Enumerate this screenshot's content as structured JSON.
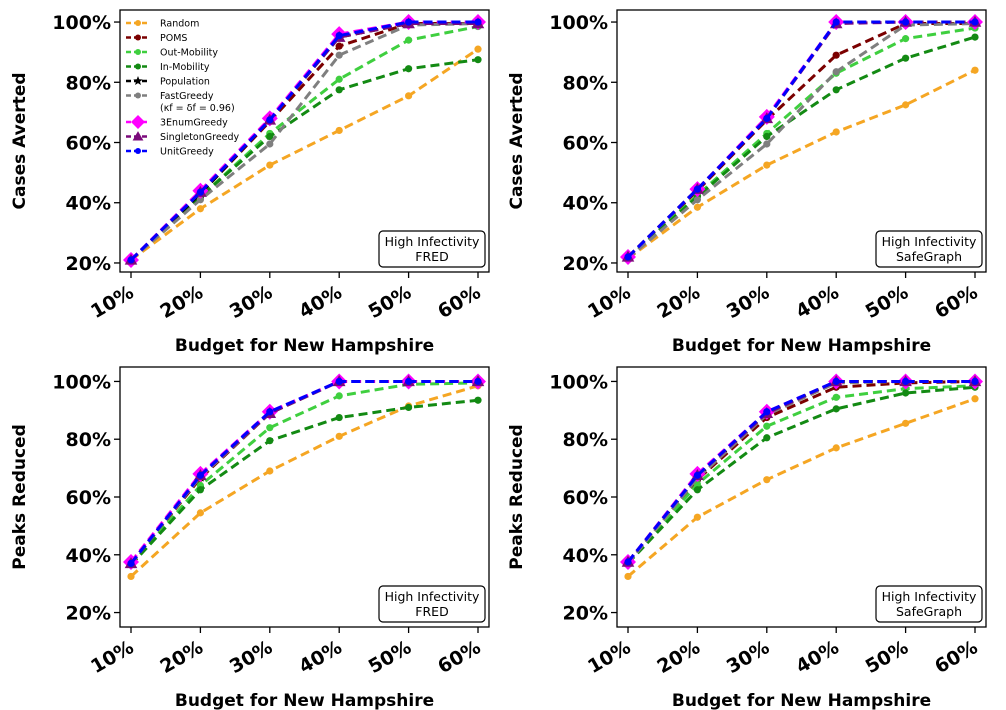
{
  "colors": {
    "Random": "#f5a623",
    "POMS": "#7b0000",
    "Out-Mobility": "#3fcf3f",
    "In-Mobility": "#138a13",
    "Population": "#000000",
    "FastGreedy": "#7f7f7f",
    "3EnumGreedy": "#ff00ff",
    "SingletonGreedy": "#7b0a7b",
    "UnitGreedy": "#0000ff"
  },
  "legend": {
    "items": [
      {
        "name": "Random",
        "label": "Random",
        "marker": "dot"
      },
      {
        "name": "POMS",
        "label": "POMS",
        "marker": "dot"
      },
      {
        "name": "Out-Mobility",
        "label": "Out-Mobility",
        "marker": "dot"
      },
      {
        "name": "In-Mobility",
        "label": "In-Mobility",
        "marker": "dot"
      },
      {
        "name": "Population",
        "label": "Population",
        "marker": "star"
      },
      {
        "name": "FastGreedy",
        "label": "FastGreedy",
        "label2": "(κf = δf = 0.96)",
        "marker": "dot"
      },
      {
        "name": "3EnumGreedy",
        "label": "3EnumGreedy",
        "marker": "diamond"
      },
      {
        "name": "SingletonGreedy",
        "label": "SingletonGreedy",
        "marker": "triangle"
      },
      {
        "name": "UnitGreedy",
        "label": "UnitGreedy",
        "marker": "dot"
      }
    ]
  },
  "chart_data": [
    {
      "type": "line",
      "panel": "top-left",
      "categories": [
        "10%",
        "20%",
        "30%",
        "40%",
        "50%",
        "60%"
      ],
      "xlabel": "Budget for New Hampshire",
      "ylabel": "Cases Averted",
      "ylim": [
        17,
        104
      ],
      "yticks": [
        "20%",
        "40%",
        "60%",
        "80%",
        "100%"
      ],
      "ytick_values": [
        20,
        40,
        60,
        80,
        100
      ],
      "annotation": [
        "High Infectivity",
        "FRED"
      ],
      "series": [
        {
          "name": "Random",
          "values": [
            21,
            38,
            52.5,
            64,
            75.5,
            91
          ]
        },
        {
          "name": "POMS",
          "values": [
            21,
            43,
            67,
            92,
            99.5,
            99.5
          ]
        },
        {
          "name": "Out-Mobility",
          "values": [
            21,
            42,
            63,
            81,
            94,
            98.5
          ]
        },
        {
          "name": "In-Mobility",
          "values": [
            21,
            42,
            62,
            77.5,
            84.5,
            87.5
          ]
        },
        {
          "name": "Population",
          "values": [
            21,
            43,
            67.5,
            95,
            99.5,
            99.5
          ]
        },
        {
          "name": "FastGreedy",
          "values": [
            21,
            41,
            59.5,
            89,
            99,
            99.5
          ]
        },
        {
          "name": "3EnumGreedy",
          "values": [
            21,
            44,
            68,
            96,
            100,
            100
          ]
        },
        {
          "name": "SingletonGreedy",
          "values": [
            21,
            43.5,
            67.5,
            95,
            99.5,
            99.5
          ]
        },
        {
          "name": "UnitGreedy",
          "values": [
            21,
            43.5,
            67.5,
            95.5,
            100,
            100
          ]
        }
      ]
    },
    {
      "type": "line",
      "panel": "top-right",
      "categories": [
        "10%",
        "20%",
        "30%",
        "40%",
        "50%",
        "60%"
      ],
      "xlabel": "Budget for New Hampshire",
      "ylabel": "Cases Averted",
      "ylim": [
        17,
        104
      ],
      "yticks": [
        "20%",
        "40%",
        "60%",
        "80%",
        "100%"
      ],
      "ytick_values": [
        20,
        40,
        60,
        80,
        100
      ],
      "annotation": [
        "High Infectivity",
        "SafeGraph"
      ],
      "series": [
        {
          "name": "Random",
          "values": [
            21.5,
            38.5,
            52.5,
            63.5,
            72.5,
            84
          ]
        },
        {
          "name": "POMS",
          "values": [
            22,
            44,
            67.5,
            89,
            99.5,
            99.5
          ]
        },
        {
          "name": "Out-Mobility",
          "values": [
            21.5,
            42.5,
            63,
            83,
            94.5,
            98
          ]
        },
        {
          "name": "In-Mobility",
          "values": [
            21.5,
            42,
            62,
            77.5,
            88,
            95
          ]
        },
        {
          "name": "Population",
          "values": [
            22,
            44.5,
            68,
            100,
            100,
            100
          ]
        },
        {
          "name": "FastGreedy",
          "values": [
            21.5,
            41,
            59.5,
            83.5,
            99,
            99.5
          ]
        },
        {
          "name": "3EnumGreedy",
          "values": [
            22,
            44.5,
            68.5,
            100,
            100,
            100
          ]
        },
        {
          "name": "SingletonGreedy",
          "values": [
            22,
            44.5,
            68,
            99.5,
            100,
            100
          ]
        },
        {
          "name": "UnitGreedy",
          "values": [
            22,
            44.5,
            68,
            100,
            100,
            100
          ]
        }
      ]
    },
    {
      "type": "line",
      "panel": "bottom-left",
      "categories": [
        "10%",
        "20%",
        "30%",
        "40%",
        "50%",
        "60%"
      ],
      "xlabel": "Budget for New Hampshire",
      "ylabel": "Peaks Reduced",
      "ylim": [
        15,
        105
      ],
      "yticks": [
        "20%",
        "40%",
        "60%",
        "80%",
        "100%"
      ],
      "ytick_values": [
        20,
        40,
        60,
        80,
        100
      ],
      "annotation": [
        "High Infectivity",
        "FRED"
      ],
      "series": [
        {
          "name": "Random",
          "values": [
            32.5,
            54.5,
            69,
            81,
            91.5,
            98.5
          ]
        },
        {
          "name": "POMS",
          "values": [
            37,
            66.5,
            89,
            100,
            100,
            100
          ]
        },
        {
          "name": "Out-Mobility",
          "values": [
            36.5,
            64,
            84,
            95,
            99,
            99.5
          ]
        },
        {
          "name": "In-Mobility",
          "values": [
            36.5,
            62.5,
            79.5,
            87.5,
            91,
            93.5
          ]
        },
        {
          "name": "Population",
          "values": [
            37,
            67,
            89,
            100,
            100,
            100
          ]
        },
        {
          "name": "FastGreedy",
          "values": [
            37,
            67,
            89,
            100,
            100,
            100
          ]
        },
        {
          "name": "3EnumGreedy",
          "values": [
            37.5,
            68,
            89.5,
            100,
            100,
            100
          ]
        },
        {
          "name": "SingletonGreedy",
          "values": [
            37,
            67.5,
            89,
            100,
            100,
            100
          ]
        },
        {
          "name": "UnitGreedy",
          "values": [
            37,
            67.5,
            89.5,
            100,
            100,
            100
          ]
        }
      ]
    },
    {
      "type": "line",
      "panel": "bottom-right",
      "categories": [
        "10%",
        "20%",
        "30%",
        "40%",
        "50%",
        "60%"
      ],
      "xlabel": "Budget for New Hampshire",
      "ylabel": "Peaks Reduced",
      "ylim": [
        15,
        105
      ],
      "yticks": [
        "20%",
        "40%",
        "60%",
        "80%",
        "100%"
      ],
      "ytick_values": [
        20,
        40,
        60,
        80,
        100
      ],
      "annotation": [
        "High Infectivity",
        "SafeGraph"
      ],
      "series": [
        {
          "name": "Random",
          "values": [
            32.5,
            53,
            66,
            77,
            85.5,
            94
          ]
        },
        {
          "name": "POMS",
          "values": [
            37,
            66,
            87.5,
            98,
            99.5,
            100
          ]
        },
        {
          "name": "Out-Mobility",
          "values": [
            37,
            64.5,
            84.5,
            94.5,
            97.5,
            98.5
          ]
        },
        {
          "name": "In-Mobility",
          "values": [
            37,
            62.5,
            80.5,
            90.5,
            96,
            98
          ]
        },
        {
          "name": "Population",
          "values": [
            37.5,
            67,
            89,
            100,
            100,
            100
          ]
        },
        {
          "name": "FastGreedy",
          "values": [
            37,
            66.5,
            88.5,
            99.5,
            100,
            100
          ]
        },
        {
          "name": "3EnumGreedy",
          "values": [
            37.5,
            68,
            89.5,
            100,
            100,
            100
          ]
        },
        {
          "name": "SingletonGreedy",
          "values": [
            37.5,
            67.5,
            89,
            100,
            100,
            100
          ]
        },
        {
          "name": "UnitGreedy",
          "values": [
            37.5,
            67.5,
            89.5,
            100,
            100,
            100
          ]
        }
      ]
    }
  ]
}
